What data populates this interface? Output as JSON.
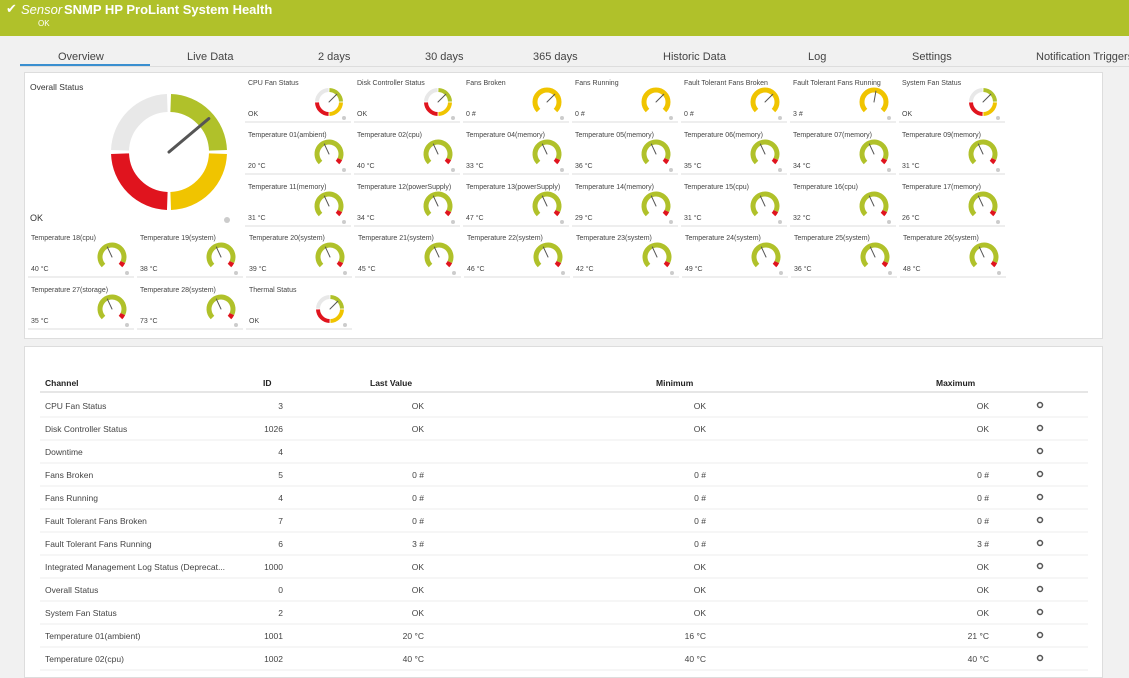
{
  "header": {
    "sensor_label": "Sensor",
    "title": "SNMP HP ProLiant System Health",
    "status": "OK"
  },
  "tabs": [
    "Overview",
    "Live Data",
    "2 days",
    "30 days",
    "365 days",
    "Historic Data",
    "Log",
    "Settings",
    "Notification Triggers"
  ],
  "overall": {
    "label": "Overall Status",
    "value": "OK"
  },
  "tiles": [
    {
      "label": "CPU Fan Status",
      "value": "OK"
    },
    {
      "label": "Disk Controller Status",
      "value": "OK"
    },
    {
      "label": "Fans Broken",
      "value": "0 #"
    },
    {
      "label": "Fans Running",
      "value": "0 #"
    },
    {
      "label": "Fault Tolerant Fans Broken",
      "value": "0 #"
    },
    {
      "label": "Fault Tolerant Fans Running",
      "value": "3 #"
    },
    {
      "label": "System Fan Status",
      "value": "OK"
    },
    {
      "label": "Temperature 01(ambient)",
      "value": "20 °C"
    },
    {
      "label": "Temperature 02(cpu)",
      "value": "40 °C"
    },
    {
      "label": "Temperature 04(memory)",
      "value": "33 °C"
    },
    {
      "label": "Temperature 05(memory)",
      "value": "36 °C"
    },
    {
      "label": "Temperature 06(memory)",
      "value": "35 °C"
    },
    {
      "label": "Temperature 07(memory)",
      "value": "34 °C"
    },
    {
      "label": "Temperature 09(memory)",
      "value": "31 °C"
    },
    {
      "label": "Temperature 11(memory)",
      "value": "31 °C"
    },
    {
      "label": "Temperature 12(powerSupply)",
      "value": "34 °C"
    },
    {
      "label": "Temperature 13(powerSupply)",
      "value": "47 °C"
    },
    {
      "label": "Temperature 14(memory)",
      "value": "29 °C"
    },
    {
      "label": "Temperature 15(cpu)",
      "value": "31 °C"
    },
    {
      "label": "Temperature 16(cpu)",
      "value": "32 °C"
    },
    {
      "label": "Temperature 17(memory)",
      "value": "26 °C"
    },
    {
      "label": "Temperature 18(cpu)",
      "value": "40 °C"
    },
    {
      "label": "Temperature 19(system)",
      "value": "38 °C"
    },
    {
      "label": "Temperature 20(system)",
      "value": "39 °C"
    },
    {
      "label": "Temperature 21(system)",
      "value": "45 °C"
    },
    {
      "label": "Temperature 22(system)",
      "value": "46 °C"
    },
    {
      "label": "Temperature 23(system)",
      "value": "42 °C"
    },
    {
      "label": "Temperature 24(system)",
      "value": "49 °C"
    },
    {
      "label": "Temperature 25(system)",
      "value": "36 °C"
    },
    {
      "label": "Temperature 26(system)",
      "value": "48 °C"
    },
    {
      "label": "Temperature 27(storage)",
      "value": "35 °C"
    },
    {
      "label": "Temperature 28(system)",
      "value": "73 °C"
    },
    {
      "label": "Thermal Status",
      "value": "OK"
    }
  ],
  "table": {
    "columns": [
      "Channel",
      "ID",
      "Last Value",
      "Minimum",
      "Maximum"
    ],
    "rows": [
      {
        "channel": "CPU Fan Status",
        "id": "3",
        "last": "OK",
        "min": "OK",
        "max": "OK"
      },
      {
        "channel": "Disk Controller Status",
        "id": "1026",
        "last": "OK",
        "min": "OK",
        "max": "OK"
      },
      {
        "channel": "Downtime",
        "id": "4"
      },
      {
        "channel": "Fans Broken",
        "id": "5",
        "last": "0 #",
        "min": "0 #",
        "max": "0 #"
      },
      {
        "channel": "Fans Running",
        "id": "4",
        "last": "0 #",
        "min": "0 #",
        "max": "0 #"
      },
      {
        "channel": "Fault Tolerant Fans Broken",
        "id": "7",
        "last": "0 #",
        "min": "0 #",
        "max": "0 #"
      },
      {
        "channel": "Fault Tolerant Fans Running",
        "id": "6",
        "last": "3 #",
        "min": "0 #",
        "max": "3 #"
      },
      {
        "channel": "Integrated Management Log Status (Deprecat...",
        "id": "1000",
        "last": "OK",
        "min": "OK",
        "max": "OK"
      },
      {
        "channel": "Overall Status",
        "id": "0",
        "last": "OK",
        "min": "OK",
        "max": "OK"
      },
      {
        "channel": "System Fan Status",
        "id": "2",
        "last": "OK",
        "min": "OK",
        "max": "OK"
      },
      {
        "channel": "Temperature 01(ambient)",
        "id": "1001",
        "last": "20 °C",
        "min": "16 °C",
        "max": "21 °C"
      },
      {
        "channel": "Temperature 02(cpu)",
        "id": "1002",
        "last": "40 °C",
        "min": "40 °C",
        "max": "40 °C"
      }
    ]
  }
}
